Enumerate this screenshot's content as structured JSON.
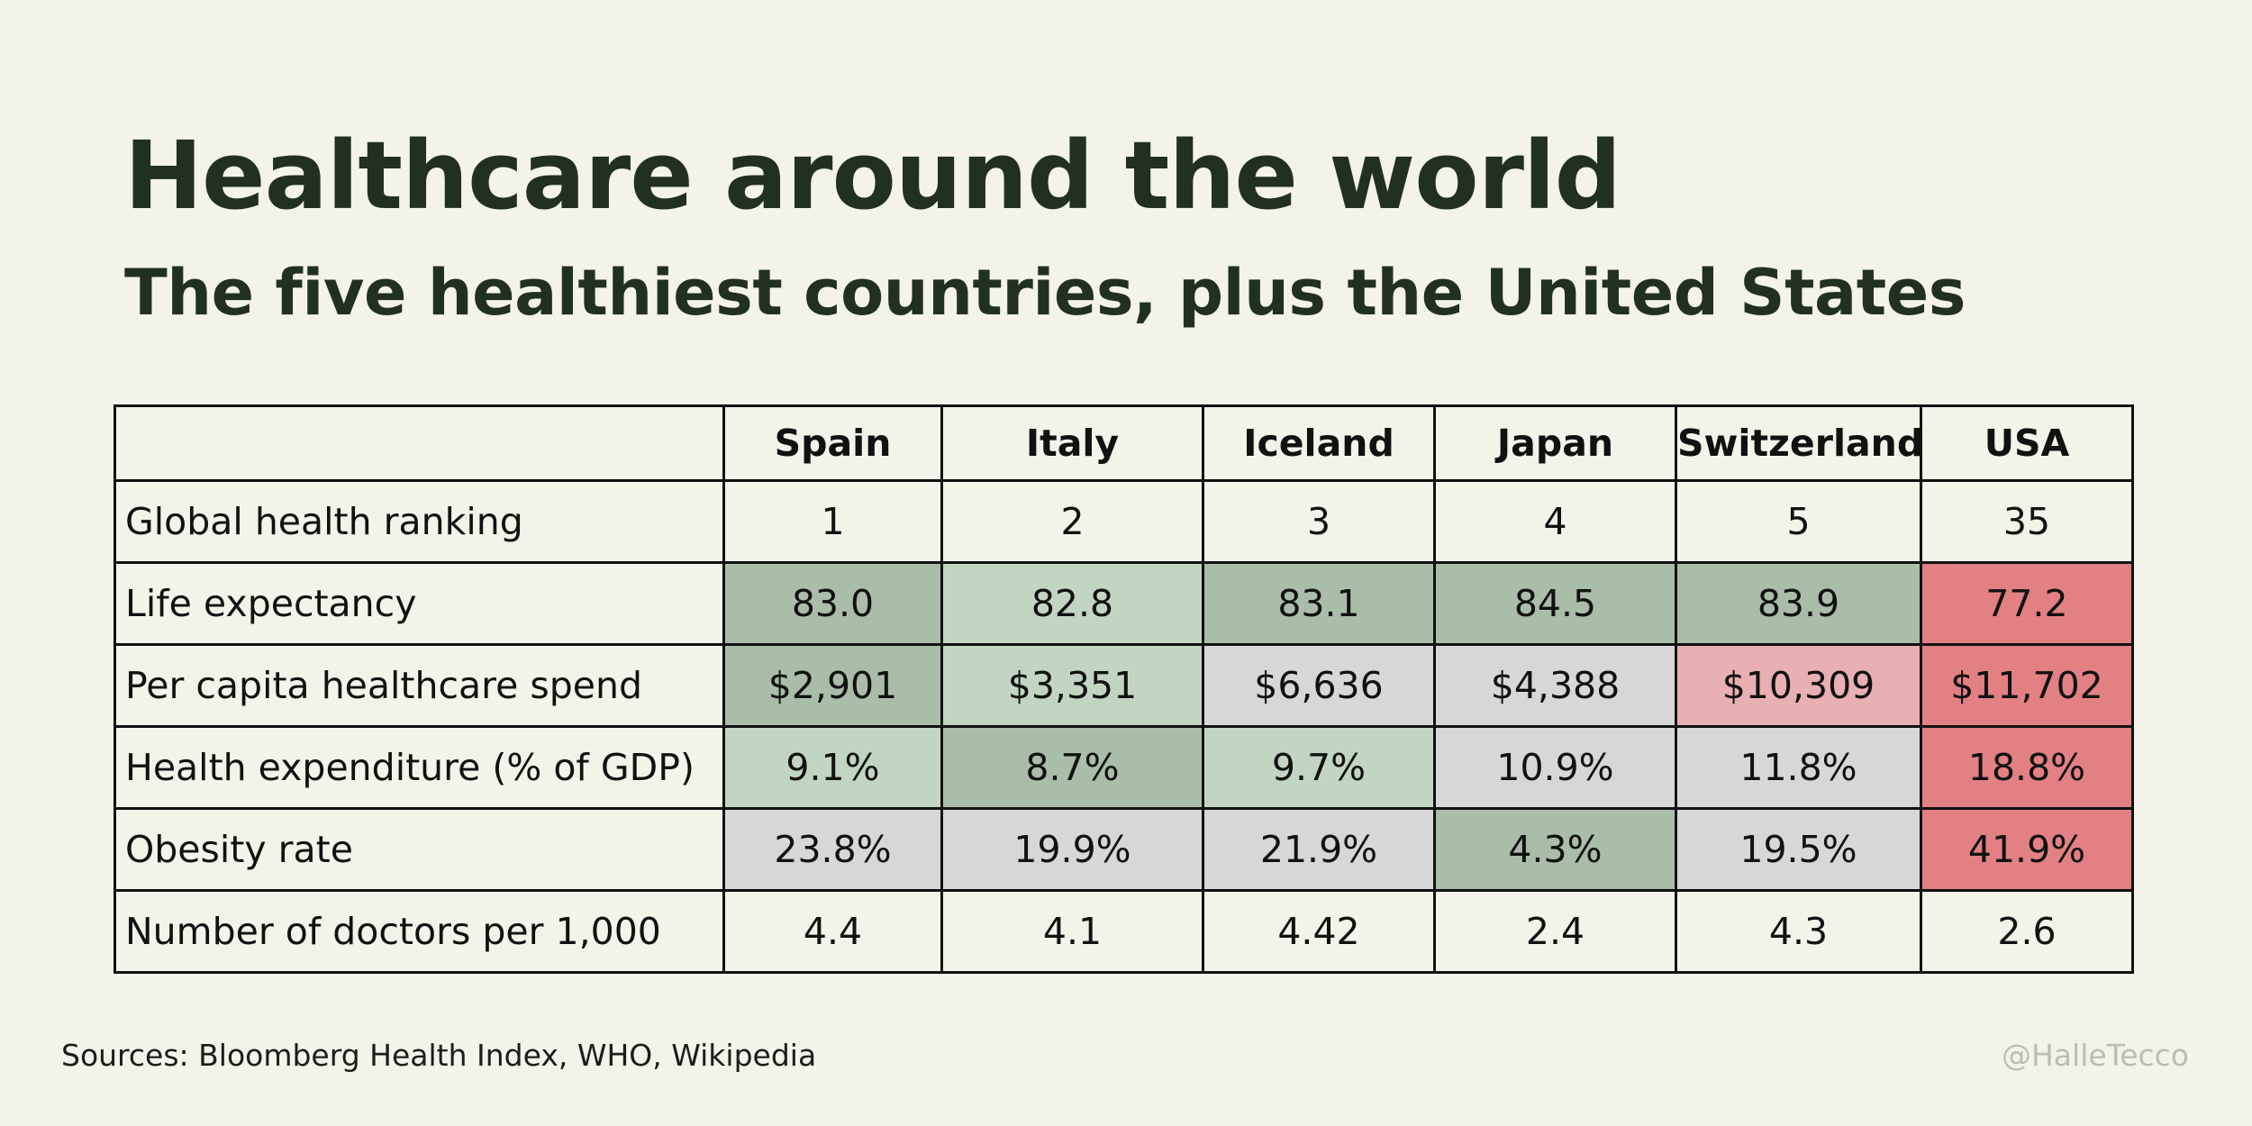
{
  "title": "Healthcare around the world",
  "subtitle": "The five healthiest countries, plus the United States",
  "sources": "Sources: Bloomberg Health Index, WHO, Wikipedia",
  "handle": "@HalleTecco",
  "colors": {
    "background": "#f4f3e9",
    "title": "#223024",
    "best": "#aabda9",
    "good": "#c2d5c3",
    "neutral": "#d7d7d7",
    "bad": "#e8b0b2",
    "worst": "#e28083",
    "none": ""
  },
  "chart_data": {
    "type": "table",
    "title": "Healthcare around the world",
    "subtitle": "The five healthiest countries, plus the United States",
    "columns": [
      "Spain",
      "Italy",
      "Iceland",
      "Japan",
      "Switzerland",
      "USA"
    ],
    "rows": [
      {
        "label": "Global health ranking",
        "values": [
          "1",
          "2",
          "3",
          "4",
          "5",
          "35"
        ],
        "shading": [
          "none",
          "none",
          "none",
          "none",
          "none",
          "none"
        ]
      },
      {
        "label": "Life expectancy",
        "values": [
          "83.0",
          "82.8",
          "83.1",
          "84.5",
          "83.9",
          "77.2"
        ],
        "shading": [
          "best",
          "good",
          "best",
          "best",
          "best",
          "worst"
        ]
      },
      {
        "label": "Per capita healthcare spend",
        "values": [
          "$2,901",
          "$3,351",
          "$6,636",
          "$4,388",
          "$10,309",
          "$11,702"
        ],
        "shading": [
          "best",
          "good",
          "neutral",
          "neutral",
          "bad",
          "worst"
        ]
      },
      {
        "label": "Health expenditure (% of GDP)",
        "values": [
          "9.1%",
          "8.7%",
          "9.7%",
          "10.9%",
          "11.8%",
          "18.8%"
        ],
        "shading": [
          "good",
          "best",
          "good",
          "neutral",
          "neutral",
          "worst"
        ]
      },
      {
        "label": "Obesity rate",
        "values": [
          "23.8%",
          "19.9%",
          "21.9%",
          "4.3%",
          "19.5%",
          "41.9%"
        ],
        "shading": [
          "neutral",
          "neutral",
          "neutral",
          "best",
          "neutral",
          "worst"
        ]
      },
      {
        "label": "Number of doctors per 1,000",
        "values": [
          "4.4",
          "4.1",
          "4.42",
          "2.4",
          "4.3",
          "2.6"
        ],
        "shading": [
          "none",
          "none",
          "none",
          "none",
          "none",
          "none"
        ]
      }
    ]
  }
}
